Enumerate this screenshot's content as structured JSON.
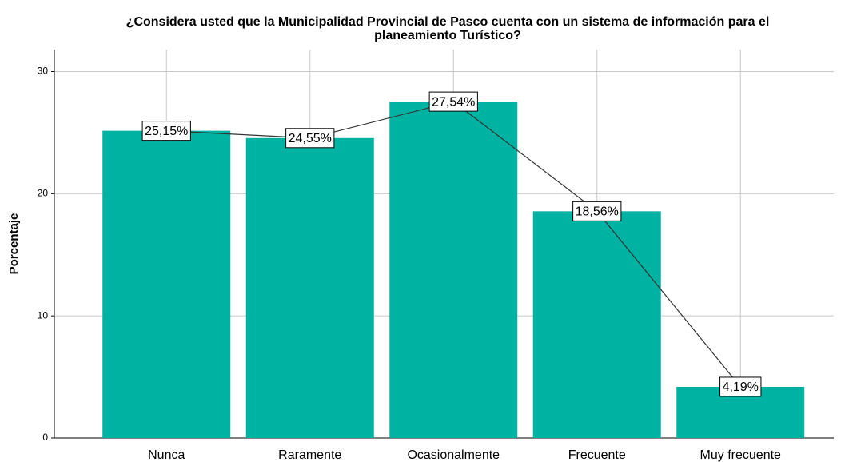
{
  "chart_data": {
    "type": "bar",
    "title": [
      "¿Considera usted que la Municipalidad Provincial de Pasco cuenta con un sistema de información para el",
      "planeamiento Turístico?"
    ],
    "y_label": "Porcentaje",
    "categories": [
      "Nunca",
      "Raramente",
      "Ocasionalmente",
      "Frecuente",
      "Muy frecuente"
    ],
    "values": [
      25.15,
      24.55,
      27.54,
      18.56,
      4.19
    ],
    "value_labels": [
      "25,15%",
      "24,55%",
      "27,54%",
      "18,56%",
      "4,19%"
    ],
    "color": "#00b2a1",
    "line": true,
    "ylim": [
      0,
      31.8
    ],
    "yticks": [
      0,
      10,
      20,
      30
    ],
    "grid": true
  }
}
